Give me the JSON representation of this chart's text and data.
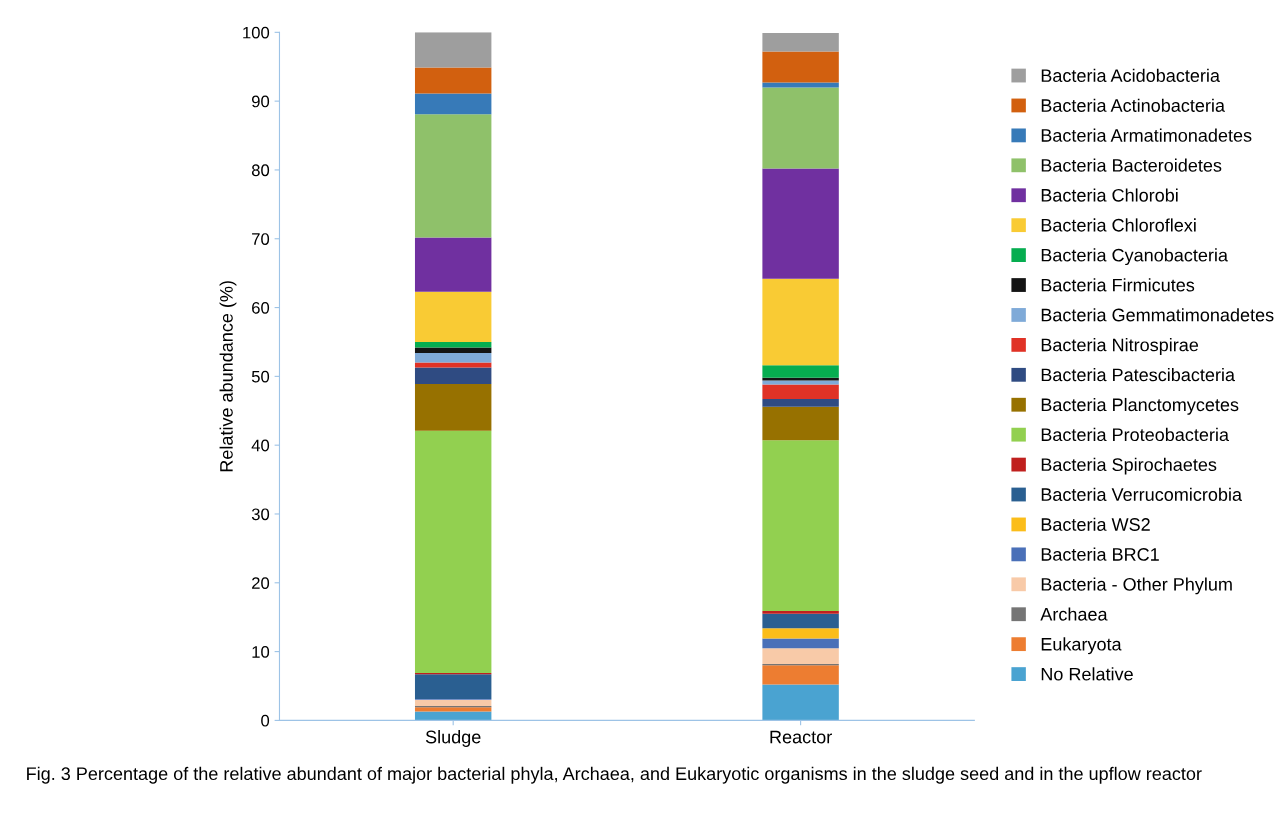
{
  "chart_data": {
    "type": "bar",
    "stacked": true,
    "ylabel": "Relative abundance (%)",
    "categories": [
      "Sludge",
      "Reactor"
    ],
    "ylim": [
      0,
      100
    ],
    "yticks": [
      0,
      10,
      20,
      30,
      40,
      50,
      60,
      70,
      80,
      90,
      100
    ],
    "grid": false,
    "legend": "right",
    "annotations": [
      "Fig. 3 Percentage of the relative abundant of major bacterial phyla, Archaea, and Eukaryotic organisms in the sludge seed and in the upflow reactor"
    ],
    "series": [
      {
        "name": "No Relative",
        "color": "#4aa3d1",
        "values": [
          1.3,
          5.2
        ]
      },
      {
        "name": "Eukaryota",
        "color": "#ed7d31",
        "values": [
          0.6,
          2.8
        ]
      },
      {
        "name": "Archaea",
        "color": "#757575",
        "values": [
          0.2,
          0.2
        ]
      },
      {
        "name": "Bacteria - Other Phylum",
        "color": "#f8caa8",
        "values": [
          0.9,
          2.3
        ]
      },
      {
        "name": "Bacteria BRC1",
        "color": "#4a70b8",
        "values": [
          0.1,
          1.4
        ]
      },
      {
        "name": "Bacteria WS2",
        "color": "#fbbd1a",
        "values": [
          0,
          1.5
        ]
      },
      {
        "name": "Bacteria Verrucomicrobia",
        "color": "#2a5f91",
        "values": [
          3.6,
          2.1
        ]
      },
      {
        "name": "Bacteria Spirochaetes",
        "color": "#c0201e",
        "values": [
          0.2,
          0.4
        ]
      },
      {
        "name": "Bacteria Proteobacteria",
        "color": "#92d050",
        "values": [
          35.2,
          24.8
        ]
      },
      {
        "name": "Bacteria Planctomycetes",
        "color": "#977100",
        "values": [
          6.8,
          4.9
        ]
      },
      {
        "name": "Bacteria Patescibacteria",
        "color": "#2f4b82",
        "values": [
          2.4,
          1.1
        ]
      },
      {
        "name": "Bacteria Nitrospirae",
        "color": "#e03226",
        "values": [
          0.7,
          2.1
        ]
      },
      {
        "name": "Bacteria Gemmatimonadetes",
        "color": "#7faad8",
        "values": [
          1.4,
          0.6
        ]
      },
      {
        "name": "Bacteria Firmicutes",
        "color": "#141414",
        "values": [
          0.8,
          0.4
        ]
      },
      {
        "name": "Bacteria Cyanobacteria",
        "color": "#06ad50",
        "values": [
          0.8,
          1.8
        ]
      },
      {
        "name": "Bacteria Chloroflexi",
        "color": "#f9cb34",
        "values": [
          7.3,
          12.6
        ]
      },
      {
        "name": "Bacteria Chlorobi",
        "color": "#7030a0",
        "values": [
          7.9,
          16.0
        ]
      },
      {
        "name": "Bacteria Bacteroidetes",
        "color": "#8fc16a",
        "values": [
          17.9,
          11.8
        ]
      },
      {
        "name": "Bacteria Armatimonadetes",
        "color": "#377ab8",
        "values": [
          3.0,
          0.7
        ]
      },
      {
        "name": "Bacteria Actinobacteria",
        "color": "#d2600f",
        "values": [
          3.8,
          4.5
        ]
      },
      {
        "name": "Bacteria Acidobacteria",
        "color": "#9e9e9e",
        "values": [
          5.1,
          2.7
        ]
      }
    ]
  }
}
